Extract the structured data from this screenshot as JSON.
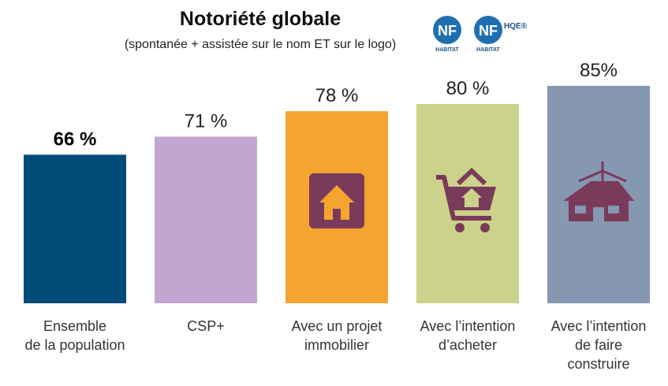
{
  "title": "Notoriété globale",
  "subtitle": "(spontanée + assistée sur le nom ET sur le logo)",
  "logos": [
    {
      "icon": "nf-habitat-logo",
      "text": "NF",
      "sub": "HABITAT"
    },
    {
      "icon": "nf-habitat-hqe-logo",
      "text": "NF",
      "sub": "HABITAT",
      "extra": "HQE®"
    }
  ],
  "chart_data": {
    "type": "bar",
    "title": "Notoriété globale",
    "subtitle": "(spontanée + assistée sur le nom ET sur le logo)",
    "categories": [
      [
        "Ensemble",
        "de la population"
      ],
      [
        "CSP+"
      ],
      [
        "Avec un projet",
        "immobilier"
      ],
      [
        "Avec l’intention",
        "d’acheter"
      ],
      [
        "Avec l’intention",
        "de faire",
        "construire"
      ]
    ],
    "values": [
      66,
      71,
      78,
      80,
      85
    ],
    "value_labels": [
      "66 %",
      "71 %",
      "78 %",
      "80 %",
      "85%"
    ],
    "colors": [
      "#004b78",
      "#c2a6cf",
      "#f5a430",
      "#ccd28a",
      "#8597b1"
    ],
    "icon_color": "#7a3b5b",
    "icons": [
      "",
      "",
      "house-icon",
      "shopping-cart-house-icon",
      "house-construction-icon"
    ],
    "ylim": [
      0,
      100
    ],
    "grid": false,
    "legend": "none"
  }
}
